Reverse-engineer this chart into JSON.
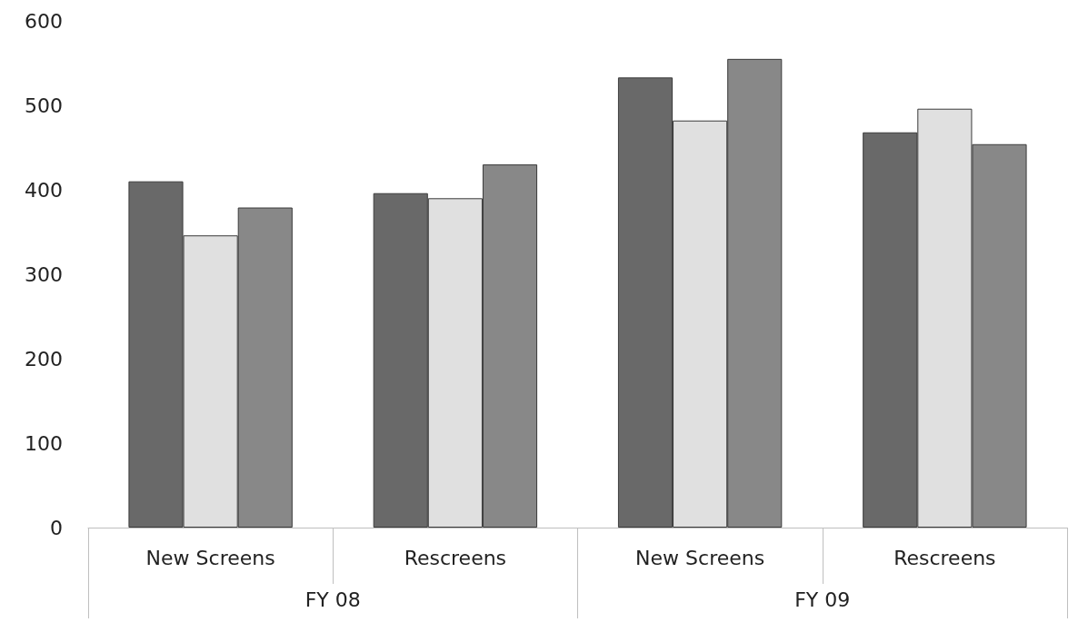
{
  "chart_data": {
    "type": "bar",
    "categories": [
      "New Screens",
      "Rescreens",
      "New Screens",
      "Rescreens"
    ],
    "series": [
      {
        "color": "#696969",
        "values": [
          410,
          396,
          533,
          468
        ]
      },
      {
        "color": "#e0e0e0",
        "values": [
          346,
          390,
          482,
          496
        ]
      },
      {
        "color": "#888888",
        "values": [
          379,
          430,
          555,
          454
        ]
      }
    ],
    "annotations": [
      "FY 08",
      "FY 09"
    ],
    "ylim": [
      0,
      600
    ],
    "yticks": [
      0,
      100,
      200,
      300,
      400,
      500,
      600
    ],
    "grid": false
  }
}
